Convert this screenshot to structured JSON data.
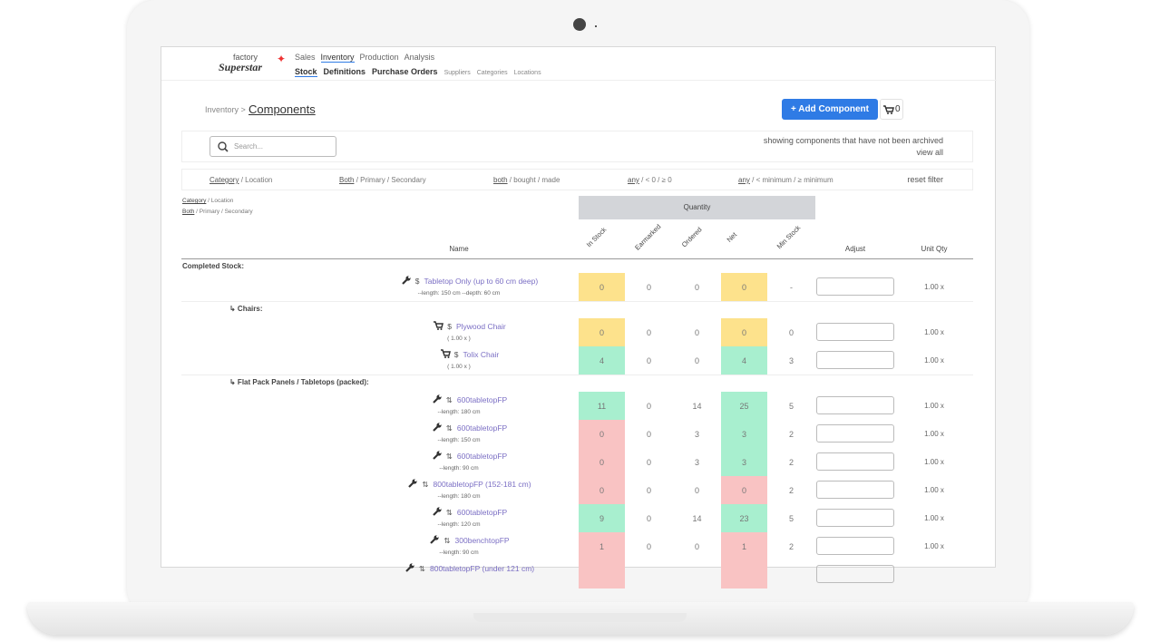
{
  "logo": {
    "line1": "factory",
    "line2": "Superstar"
  },
  "nav": {
    "main": [
      "Sales",
      "Inventory",
      "Production",
      "Analysis"
    ],
    "active_main": 1,
    "sub": [
      "Stock",
      "Definitions",
      "Purchase Orders",
      "Suppliers",
      "Categories",
      "Locations"
    ],
    "active_sub": 0
  },
  "breadcrumb": {
    "parent": "Inventory >",
    "current": "Components"
  },
  "add_button": "+ Add Component",
  "cart_count": "0",
  "search_placeholder": "Search...",
  "archive_note": "showing components that have not been archived",
  "view_all": "view all",
  "filters": [
    {
      "first": "Category",
      "rest": " / Location"
    },
    {
      "first": "Both",
      "rest": " / Primary / Secondary"
    },
    {
      "first": "both",
      "rest": " / bought / made"
    },
    {
      "first": "any",
      "rest": " / < 0 / ≥ 0"
    },
    {
      "first": "any",
      "rest": " / < minimum / ≥ minimum"
    }
  ],
  "reset_filter": "reset filter",
  "small_filters": [
    {
      "first": "Category",
      "rest": " / Location"
    },
    {
      "first": "Both",
      "rest": " / Primary / Secondary"
    }
  ],
  "table": {
    "group_header": "Quantity",
    "name_header": "Name",
    "quantity_headers": [
      "In Stock",
      "Earmarked",
      "Ordered",
      "Net",
      "Min Stock"
    ],
    "adjust_header": "Adjust",
    "unit_header": "Unit Qty",
    "sections": [
      {
        "title": "Completed Stock:",
        "level": 0,
        "rows": [
          {
            "icon": "wrench",
            "symbol": "$",
            "name": "Tabletop Only (up to 60 cm deep)",
            "detail": "--length: 150 cm --depth: 60 cm",
            "in_stock": 0,
            "earmarked": 0,
            "ordered": 0,
            "net": 0,
            "min_stock": "-",
            "unit_qty": "1.00 x",
            "in_stock_color": "#fde28c",
            "net_color": "#fde28c"
          }
        ]
      },
      {
        "title": "↳ Chairs:",
        "level": 1,
        "rows": [
          {
            "icon": "cart",
            "symbol": "$",
            "name": "Plywood Chair",
            "detail": "( 1.00 x )",
            "in_stock": 0,
            "earmarked": 0,
            "ordered": 0,
            "net": 0,
            "min_stock": 0,
            "unit_qty": "1.00 x",
            "in_stock_color": "#fde28c",
            "net_color": "#fde28c"
          },
          {
            "icon": "cart",
            "symbol": "$",
            "name": "Tolix Chair",
            "detail": "( 1.00 x )",
            "in_stock": 4,
            "earmarked": 0,
            "ordered": 0,
            "net": 4,
            "min_stock": 3,
            "unit_qty": "1.00 x",
            "in_stock_color": "#a8efcf",
            "net_color": "#a8efcf"
          }
        ]
      },
      {
        "title": "↳ Flat Pack Panels / Tabletops (packed):",
        "level": 1,
        "rows": [
          {
            "icon": "wrench",
            "symbol": "⇅",
            "name": "600tabletopFP",
            "detail": "--length: 180 cm",
            "in_stock": 11,
            "earmarked": 0,
            "ordered": 14,
            "net": 25,
            "min_stock": 5,
            "unit_qty": "1.00 x",
            "in_stock_color": "#a8efcf",
            "net_color": "#a8efcf"
          },
          {
            "icon": "wrench",
            "symbol": "⇅",
            "name": "600tabletopFP",
            "detail": "--length: 150 cm",
            "in_stock": 0,
            "earmarked": 0,
            "ordered": 3,
            "net": 3,
            "min_stock": 2,
            "unit_qty": "1.00 x",
            "in_stock_color": "#f9c3c3",
            "net_color": "#a8efcf"
          },
          {
            "icon": "wrench",
            "symbol": "⇅",
            "name": "600tabletopFP",
            "detail": "--length: 90 cm",
            "in_stock": 0,
            "earmarked": 0,
            "ordered": 3,
            "net": 3,
            "min_stock": 2,
            "unit_qty": "1.00 x",
            "in_stock_color": "#f9c3c3",
            "net_color": "#a8efcf"
          },
          {
            "icon": "wrench",
            "symbol": "⇅",
            "name": "800tabletopFP (152-181 cm)",
            "detail": "--length: 180 cm",
            "in_stock": 0,
            "earmarked": 0,
            "ordered": 0,
            "net": 0,
            "min_stock": 2,
            "unit_qty": "1.00 x",
            "in_stock_color": "#f9c3c3",
            "net_color": "#f9c3c3"
          },
          {
            "icon": "wrench",
            "symbol": "⇅",
            "name": "600tabletopFP",
            "detail": "--length: 120 cm",
            "in_stock": 9,
            "earmarked": 0,
            "ordered": 14,
            "net": 23,
            "min_stock": 5,
            "unit_qty": "1.00 x",
            "in_stock_color": "#a8efcf",
            "net_color": "#a8efcf"
          },
          {
            "icon": "wrench",
            "symbol": "⇅",
            "name": "300benchtopFP",
            "detail": "--length: 90 cm",
            "in_stock": 1,
            "earmarked": 0,
            "ordered": 0,
            "net": 1,
            "min_stock": 2,
            "unit_qty": "1.00 x",
            "in_stock_color": "#f9c3c3",
            "net_color": "#f9c3c3"
          },
          {
            "icon": "wrench",
            "symbol": "⇅",
            "name": "800tabletopFP (under 121 cm)",
            "in_stock_color": "#f9c3c3",
            "net_color": "#f9c3c3"
          }
        ]
      }
    ]
  }
}
